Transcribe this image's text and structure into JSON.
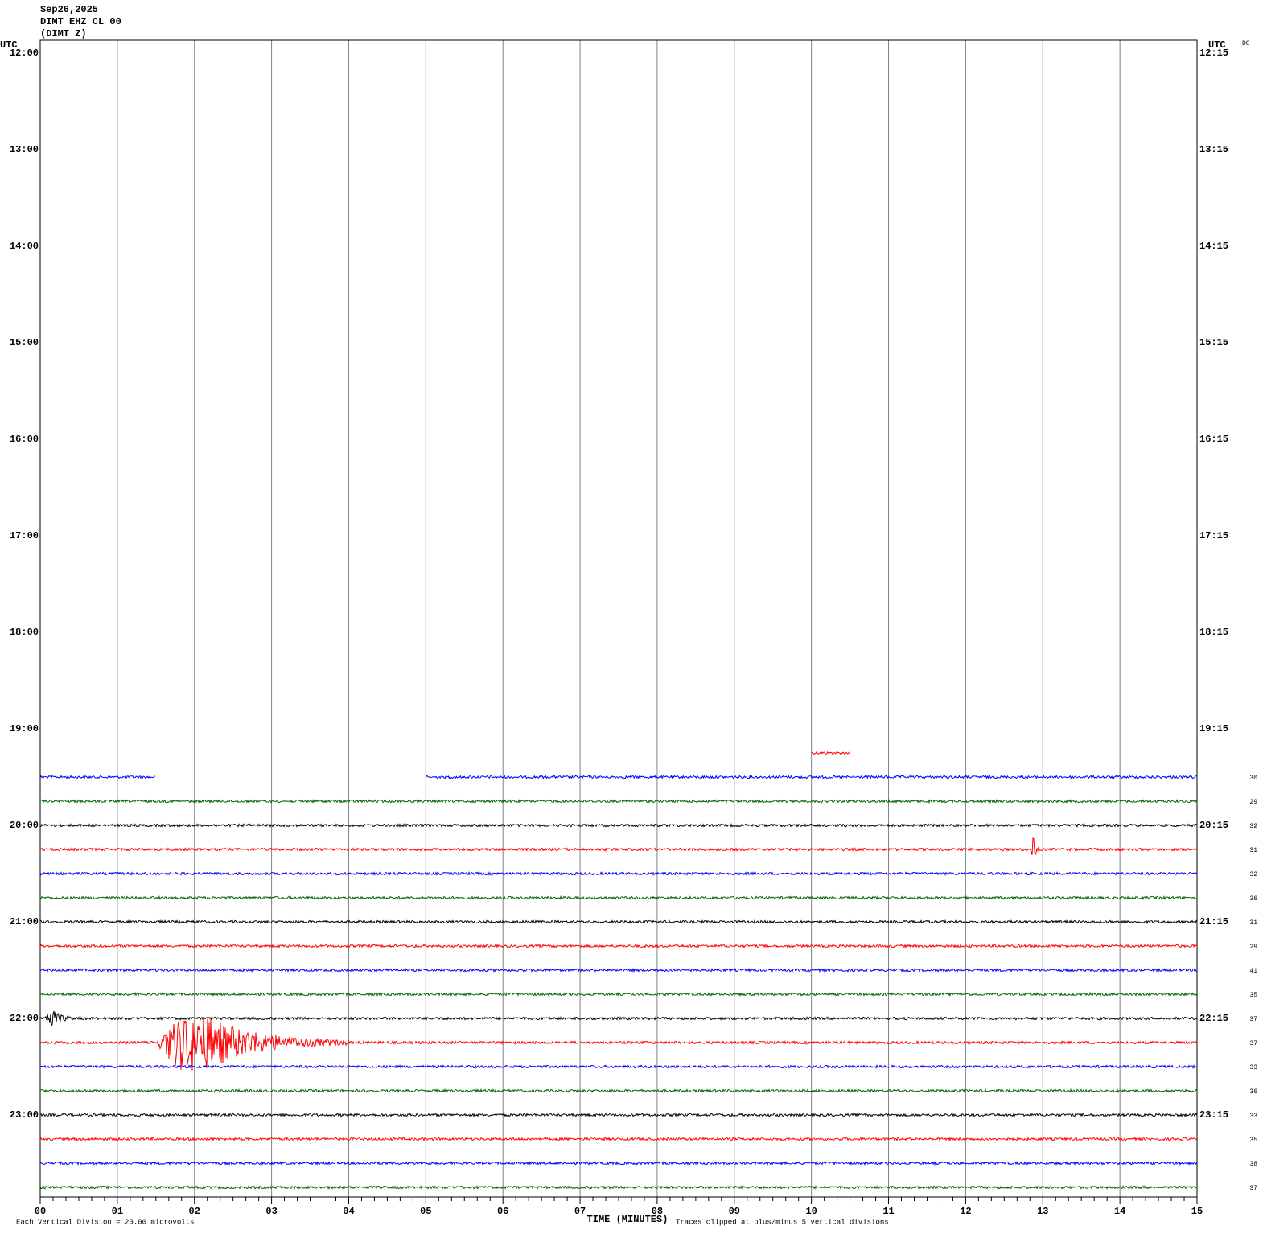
{
  "chart_data": {
    "type": "helicorder",
    "title_lines": [
      "Sep26,2025",
      "DIMT EHZ CL 00",
      "(DIMT Z)"
    ],
    "left_axis_title": "UTC",
    "right_axis_title": "UTC",
    "corner_label": "DC",
    "left_labels": [
      "12:00",
      "13:00",
      "14:00",
      "15:00",
      "16:00",
      "17:00",
      "18:00",
      "19:00",
      "20:00",
      "21:00",
      "22:00",
      "23:00"
    ],
    "right_labels": [
      "12:15",
      "13:15",
      "14:15",
      "15:15",
      "16:15",
      "17:15",
      "18:15",
      "19:15",
      "20:15",
      "21:15",
      "22:15",
      "23:15"
    ],
    "xlim": [
      0,
      15
    ],
    "xticks": [
      {
        "value": 0,
        "label": "00"
      },
      {
        "value": 1,
        "label": "01"
      },
      {
        "value": 2,
        "label": "02"
      },
      {
        "value": 3,
        "label": "03"
      },
      {
        "value": 4,
        "label": "04"
      },
      {
        "value": 5,
        "label": "05"
      },
      {
        "value": 6,
        "label": "06"
      },
      {
        "value": 7,
        "label": "07"
      },
      {
        "value": 8,
        "label": "08"
      },
      {
        "value": 9,
        "label": "09"
      },
      10,
      11,
      12,
      13,
      14,
      15
    ],
    "xlabel": "TIME (MINUTES)",
    "scale_note": "Each Vertical Division =   20.00 microvolts",
    "clip_note": "Traces clipped at plus/minus 5 vertical divisions",
    "grid": true,
    "traces": [
      {
        "color": "#ff0000",
        "segments": [
          [
            10,
            10.5
          ]
        ],
        "label": null,
        "bursts": []
      },
      {
        "color": "#0000ff",
        "segments": [
          [
            0,
            1.5
          ],
          [
            5,
            15
          ]
        ],
        "label": "30",
        "bursts": []
      },
      {
        "color": "#006400",
        "segments": [
          [
            0,
            15
          ]
        ],
        "label": "29",
        "bursts": []
      },
      {
        "color": "#000000",
        "segments": [
          [
            0,
            15
          ]
        ],
        "label": "32",
        "bursts": []
      },
      {
        "color": "#ff0000",
        "segments": [
          [
            0,
            15
          ]
        ],
        "label": "31",
        "bursts": [
          [
            12.85,
            0.1,
            3.5
          ]
        ]
      },
      {
        "color": "#0000ff",
        "segments": [
          [
            0,
            15
          ]
        ],
        "label": "32",
        "bursts": []
      },
      {
        "color": "#006400",
        "segments": [
          [
            0,
            15
          ]
        ],
        "label": "36",
        "bursts": []
      },
      {
        "color": "#000000",
        "segments": [
          [
            0,
            15
          ]
        ],
        "label": "31",
        "bursts": []
      },
      {
        "color": "#ff0000",
        "segments": [
          [
            0,
            15
          ]
        ],
        "label": "29",
        "bursts": []
      },
      {
        "color": "#0000ff",
        "segments": [
          [
            0,
            15
          ]
        ],
        "label": "41",
        "bursts": []
      },
      {
        "color": "#006400",
        "segments": [
          [
            0,
            15
          ]
        ],
        "label": "35",
        "bursts": []
      },
      {
        "color": "#000000",
        "segments": [
          [
            0,
            15
          ]
        ],
        "label": "37",
        "bursts": [
          [
            0.05,
            0.4,
            1.5
          ]
        ]
      },
      {
        "color": "#ff0000",
        "segments": [
          [
            0,
            15
          ]
        ],
        "label": "37",
        "bursts": [
          [
            1.5,
            2.5,
            5
          ]
        ]
      },
      {
        "color": "#0000ff",
        "segments": [
          [
            0,
            15
          ]
        ],
        "label": "33",
        "bursts": []
      },
      {
        "color": "#006400",
        "segments": [
          [
            0,
            15
          ]
        ],
        "label": "36",
        "bursts": []
      },
      {
        "color": "#000000",
        "segments": [
          [
            0,
            15
          ]
        ],
        "label": "33",
        "bursts": []
      },
      {
        "color": "#ff0000",
        "segments": [
          [
            0,
            15
          ]
        ],
        "label": "35",
        "bursts": []
      },
      {
        "color": "#0000ff",
        "segments": [
          [
            0,
            15
          ]
        ],
        "label": "38",
        "bursts": []
      },
      {
        "color": "#006400",
        "segments": [
          [
            0,
            15
          ]
        ],
        "label": "37",
        "bursts": []
      }
    ]
  }
}
